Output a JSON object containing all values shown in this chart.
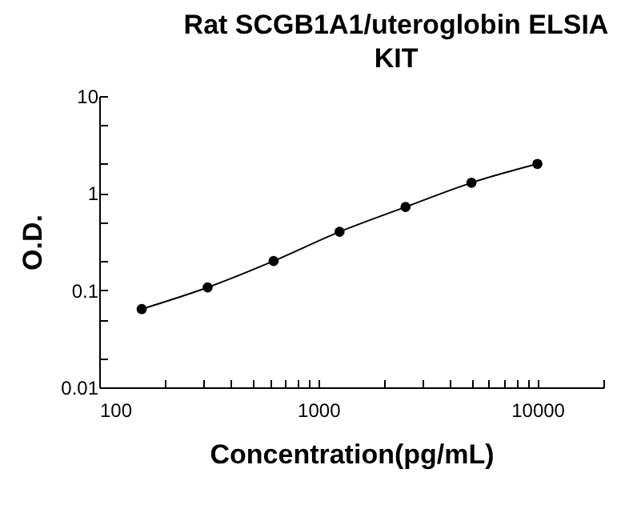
{
  "chart_data": {
    "type": "line",
    "title": "Rat SCGB1A1/uteroglobin ELSIA KIT",
    "xlabel": "Concentration(pg/mL)",
    "ylabel": "O.D.",
    "log": "xy",
    "marker": "circle",
    "grid": false,
    "legend": false,
    "x": [
      156.25,
      312.5,
      625,
      1250,
      2500,
      5000,
      10000
    ],
    "series": [
      {
        "color": "#000000",
        "values": [
          0.064,
          0.107,
          0.2,
          0.4,
          0.72,
          1.28,
          2.0
        ]
      }
    ],
    "xlim": [
      100,
      20000
    ],
    "xticks": [
      100,
      {
        "value": 200,
        "label": null
      },
      {
        "value": 300,
        "label": null
      },
      {
        "value": 400,
        "label": null
      },
      {
        "value": 500,
        "label": null
      },
      {
        "value": 600,
        "label": null
      },
      {
        "value": 700,
        "label": null
      },
      {
        "value": 800,
        "label": null
      },
      {
        "value": 900,
        "label": null
      },
      1000,
      {
        "value": 2000,
        "label": null
      },
      {
        "value": 3000,
        "label": null
      },
      {
        "value": 4000,
        "label": null
      },
      {
        "value": 5000,
        "label": null
      },
      {
        "value": 6000,
        "label": null
      },
      {
        "value": 7000,
        "label": null
      },
      {
        "value": 8000,
        "label": null
      },
      {
        "value": 9000,
        "label": null
      },
      10000,
      {
        "value": 20000,
        "label": null
      }
    ],
    "ylim": [
      0.01,
      10
    ],
    "yticks": [
      0.01,
      {
        "value": 0.02,
        "label": null
      },
      {
        "value": 0.05,
        "label": null
      },
      0.1,
      {
        "value": 0.2,
        "label": null
      },
      {
        "value": 0.5,
        "label": null
      },
      1,
      {
        "value": 2,
        "label": null
      },
      {
        "value": 5,
        "label": null
      },
      10
    ]
  }
}
